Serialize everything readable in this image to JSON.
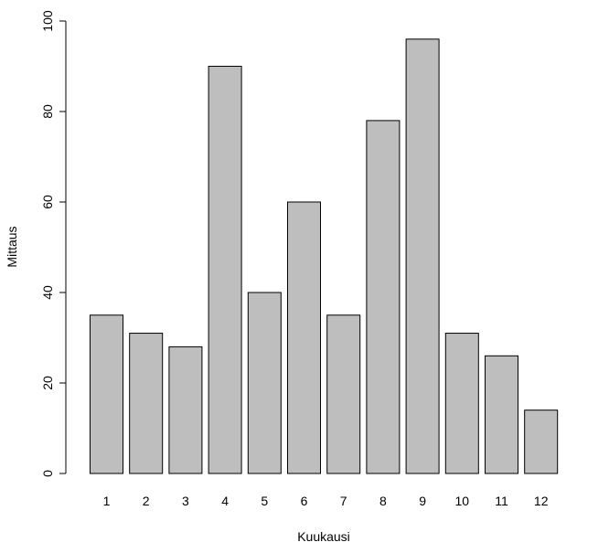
{
  "chart_data": {
    "type": "bar",
    "categories": [
      "1",
      "2",
      "3",
      "4",
      "5",
      "6",
      "7",
      "8",
      "9",
      "10",
      "11",
      "12"
    ],
    "values": [
      35,
      31,
      28,
      90,
      40,
      60,
      35,
      78,
      96,
      31,
      26,
      14
    ],
    "xlabel": "Kuukausi",
    "ylabel": "Mittaus",
    "ylim": [
      0,
      100
    ],
    "yticks": [
      0,
      20,
      40,
      60,
      80,
      100
    ],
    "grid": false,
    "legend": "none",
    "bar_color": "#bebebe",
    "edge_color": "#000000"
  }
}
